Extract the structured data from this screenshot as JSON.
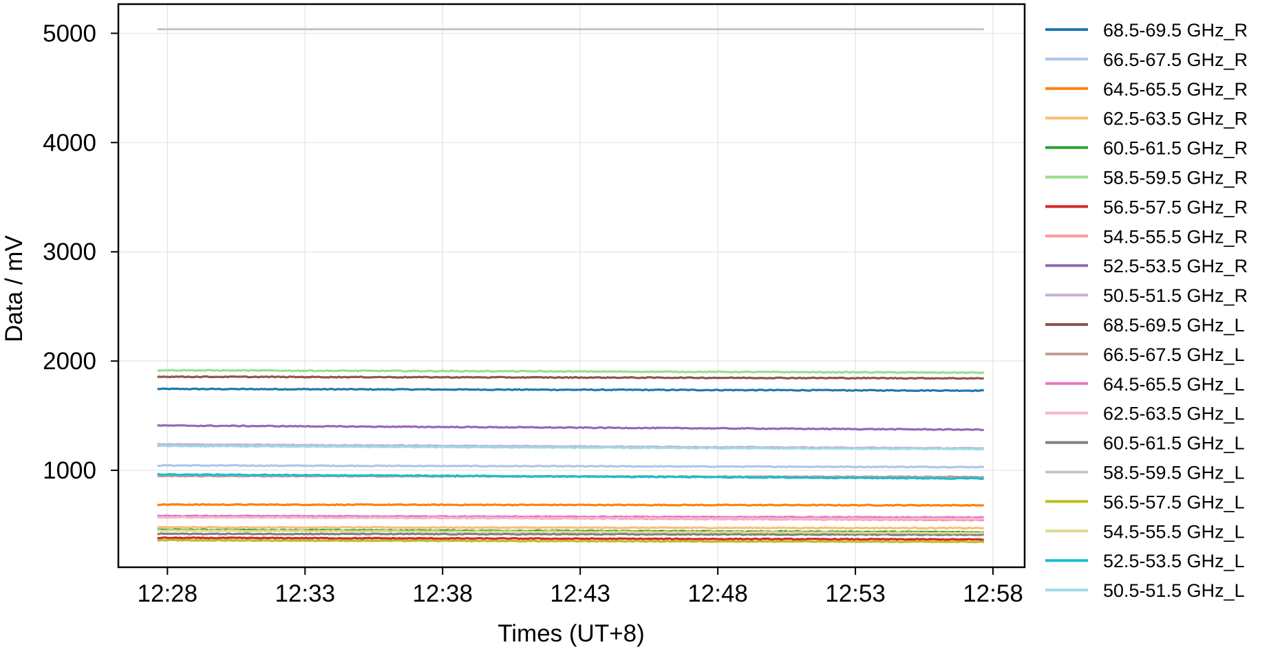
{
  "chart_data": {
    "type": "line",
    "xlabel": "Times (UT+8)",
    "ylabel": "Data / mV",
    "xlim": [
      "12:26:13",
      "12:59:09"
    ],
    "ylim": [
      113,
      5267
    ],
    "x_range_of_data": [
      "12:27:38",
      "12:57:40"
    ],
    "xticks": [
      "12:28",
      "12:33",
      "12:38",
      "12:43",
      "12:48",
      "12:53",
      "12:58"
    ],
    "yticks": [
      1000,
      2000,
      3000,
      4000,
      5000
    ],
    "grid": true,
    "legend_position": "outside-right",
    "series": [
      {
        "name": "68.5-69.5 GHz_R",
        "color": "#1f77b4",
        "start": 1745,
        "end": 1730
      },
      {
        "name": "66.5-67.5 GHz_R",
        "color": "#aec7e8",
        "start": 1045,
        "end": 1030
      },
      {
        "name": "64.5-65.5 GHz_R",
        "color": "#ff7f0e",
        "start": 687,
        "end": 680
      },
      {
        "name": "62.5-63.5 GHz_R",
        "color": "#ffbb78",
        "start": 479,
        "end": 471
      },
      {
        "name": "60.5-61.5 GHz_R",
        "color": "#2ca02c",
        "start": 456,
        "end": 434
      },
      {
        "name": "58.5-59.5 GHz_R",
        "color": "#98df8a",
        "start": 1916,
        "end": 1894
      },
      {
        "name": "56.5-57.5 GHz_R",
        "color": "#d62728",
        "start": 382,
        "end": 367
      },
      {
        "name": "54.5-55.5 GHz_R",
        "color": "#ff9896",
        "start": 575,
        "end": 545
      },
      {
        "name": "52.5-53.5 GHz_R",
        "color": "#9467bd",
        "start": 1410,
        "end": 1372
      },
      {
        "name": "50.5-51.5 GHz_R",
        "color": "#c5b0d5",
        "start": 1238,
        "end": 1201
      },
      {
        "name": "68.5-69.5 GHz_L",
        "color": "#8c564b",
        "start": 1857,
        "end": 1842
      },
      {
        "name": "66.5-67.5 GHz_L",
        "color": "#c49c94",
        "start": 948,
        "end": 940
      },
      {
        "name": "64.5-65.5 GHz_L",
        "color": "#e377c2",
        "start": 583,
        "end": 568
      },
      {
        "name": "62.5-63.5 GHz_L",
        "color": "#f7b6d2",
        "start": 570,
        "end": 555
      },
      {
        "name": "60.5-61.5 GHz_L",
        "color": "#7f7f7f",
        "start": 419,
        "end": 411
      },
      {
        "name": "58.5-59.5 GHz_L",
        "color": "#c7c7c7",
        "start": 5037,
        "end": 5037
      },
      {
        "name": "56.5-57.5 GHz_L",
        "color": "#bcbd22",
        "start": 360,
        "end": 345
      },
      {
        "name": "54.5-55.5 GHz_L",
        "color": "#dbdb8d",
        "start": 449,
        "end": 426
      },
      {
        "name": "52.5-53.5 GHz_L",
        "color": "#17becf",
        "start": 963,
        "end": 925
      },
      {
        "name": "50.5-51.5 GHz_L",
        "color": "#9edae5",
        "start": 1223,
        "end": 1194
      }
    ]
  }
}
